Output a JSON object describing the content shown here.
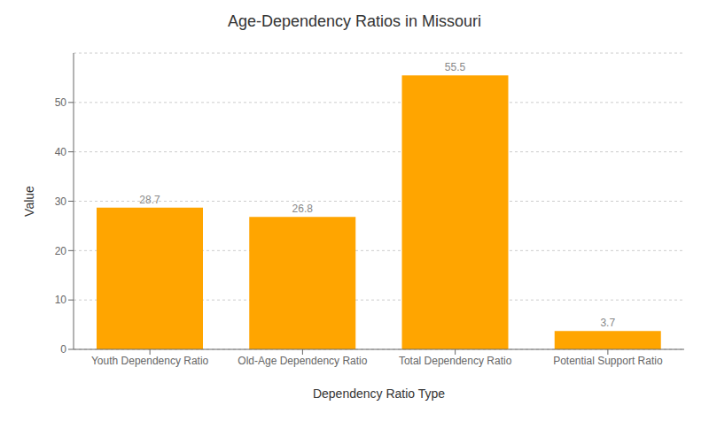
{
  "chart_data": {
    "type": "bar",
    "title": "Age-Dependency Ratios in Missouri",
    "xlabel": "Dependency Ratio Type",
    "ylabel": "Value",
    "categories": [
      "Youth Dependency Ratio",
      "Old-Age Dependency Ratio",
      "Total Dependency Ratio",
      "Potential Support Ratio"
    ],
    "values": [
      28.7,
      26.8,
      55.5,
      3.7
    ],
    "color": "#FFA500",
    "ylim": [
      0,
      60
    ],
    "yticks": [
      0,
      10,
      20,
      30,
      40,
      50
    ],
    "grid": true,
    "data_labels": true
  }
}
